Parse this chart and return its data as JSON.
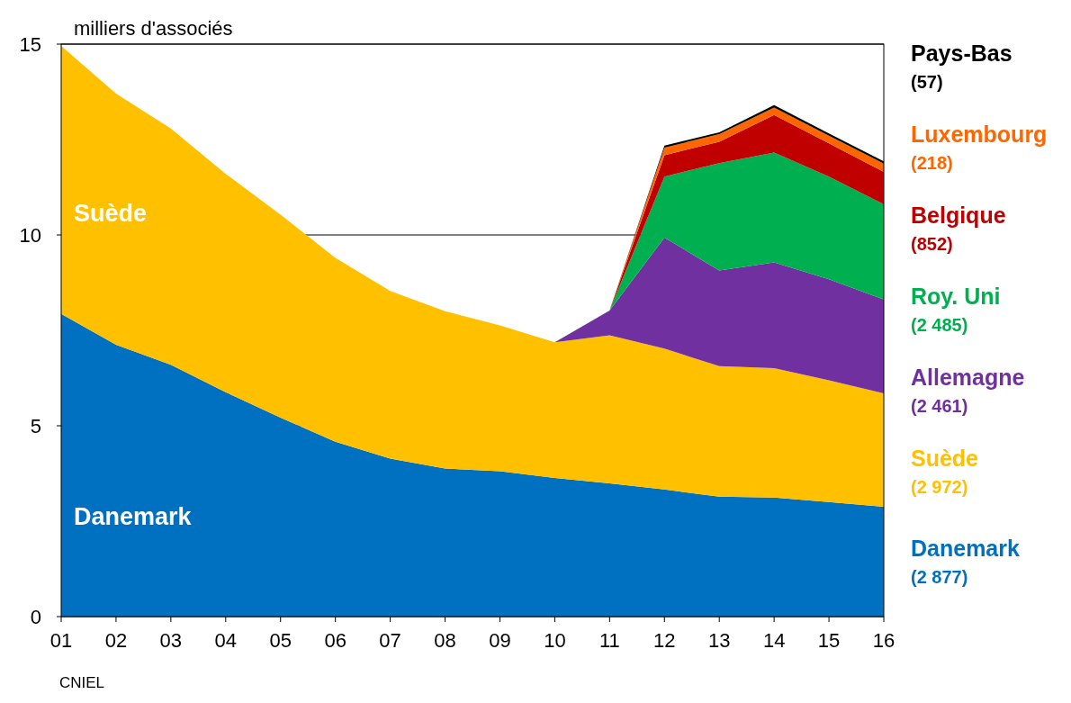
{
  "chart_data": {
    "type": "area",
    "stacked": true,
    "ylabel": "milliers d'associés",
    "categories": [
      "01",
      "02",
      "03",
      "04",
      "05",
      "06",
      "07",
      "08",
      "09",
      "10",
      "11",
      "12",
      "13",
      "14",
      "15",
      "16"
    ],
    "ylim": [
      0,
      15
    ],
    "yticks": [
      0,
      5,
      10,
      15
    ],
    "grid": "y",
    "legend": false,
    "series": [
      {
        "name": "Danemark",
        "color": "#0070c0",
        "values": [
          7.93,
          7.12,
          6.6,
          5.88,
          5.21,
          4.58,
          4.14,
          3.88,
          3.81,
          3.63,
          3.49,
          3.33,
          3.14,
          3.12,
          3.0,
          2.88
        ]
      },
      {
        "name": "Suède",
        "color": "#ffc000",
        "values": [
          7.02,
          6.58,
          6.19,
          5.72,
          5.32,
          4.82,
          4.39,
          4.12,
          3.82,
          3.56,
          3.88,
          3.69,
          3.42,
          3.39,
          3.19,
          2.97
        ]
      },
      {
        "name": "Allemagne",
        "color": "#7030a0",
        "values": [
          null,
          null,
          null,
          null,
          null,
          null,
          null,
          null,
          null,
          0,
          0.65,
          2.91,
          2.51,
          2.77,
          2.65,
          2.46
        ]
      },
      {
        "name": "Roy. Uni",
        "color": "#00b050",
        "values": [
          null,
          null,
          null,
          null,
          null,
          null,
          null,
          null,
          null,
          null,
          0,
          1.6,
          2.81,
          2.88,
          2.69,
          2.49
        ]
      },
      {
        "name": "Belgique",
        "color": "#c00000",
        "values": [
          null,
          null,
          null,
          null,
          null,
          null,
          null,
          null,
          null,
          null,
          0,
          0.56,
          0.56,
          0.98,
          0.87,
          0.85
        ]
      },
      {
        "name": "Luxembourg",
        "color": "#ff6600",
        "values": [
          null,
          null,
          null,
          null,
          null,
          null,
          null,
          null,
          null,
          null,
          0,
          0.2,
          0.2,
          0.2,
          0.2,
          0.22
        ]
      },
      {
        "name": "Pays-Bas",
        "color": "#000000",
        "values": [
          null,
          null,
          null,
          null,
          null,
          null,
          null,
          null,
          null,
          null,
          0,
          0.05,
          0.05,
          0.06,
          0.06,
          0.06
        ]
      }
    ],
    "annotations": [
      "Suède",
      "Danemark",
      "(2 877)",
      "(2 972)",
      "(2 461)",
      "(2 485)",
      "(852)",
      "(218)",
      "(57)",
      "CNIEL"
    ]
  }
}
